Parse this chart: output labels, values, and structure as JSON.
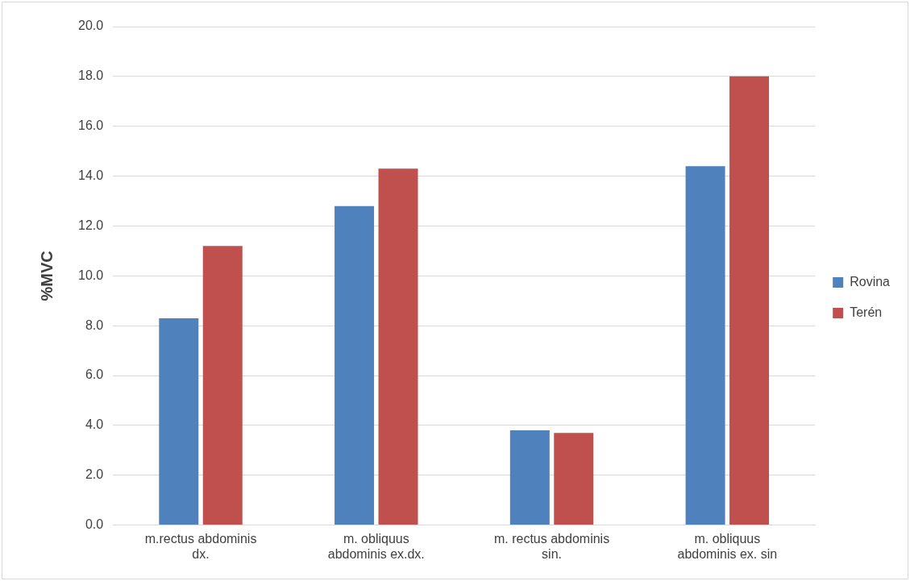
{
  "chart_data": {
    "type": "bar",
    "ylabel": "%MVC",
    "categories": [
      "m.rectus abdominis dx.",
      "m. obliquus abdominis ex.dx.",
      "m. rectus abdominis sin.",
      "m. obliquus abdominis ex. sin"
    ],
    "series": [
      {
        "name": "Rovina",
        "color": "#4f81bd",
        "values": [
          8.3,
          12.8,
          3.8,
          14.4
        ]
      },
      {
        "name": "Terén",
        "color": "#c0504d",
        "values": [
          11.2,
          14.3,
          3.7,
          18.0
        ]
      }
    ],
    "ylim": [
      0,
      20
    ],
    "yticks": [
      {
        "value": 0,
        "label": "0.0"
      },
      {
        "value": 2,
        "label": "2.0"
      },
      {
        "value": 4,
        "label": "4.0"
      },
      {
        "value": 6,
        "label": "6.0"
      },
      {
        "value": 8,
        "label": "8.0"
      },
      {
        "value": 10,
        "label": "10.0"
      },
      {
        "value": 12,
        "label": "12.0"
      },
      {
        "value": 14,
        "label": "14.0"
      },
      {
        "value": 16,
        "label": "16.0"
      },
      {
        "value": 18,
        "label": "18.0"
      },
      {
        "value": 20,
        "label": "20.0"
      }
    ],
    "grid": "y",
    "legend": "right"
  }
}
